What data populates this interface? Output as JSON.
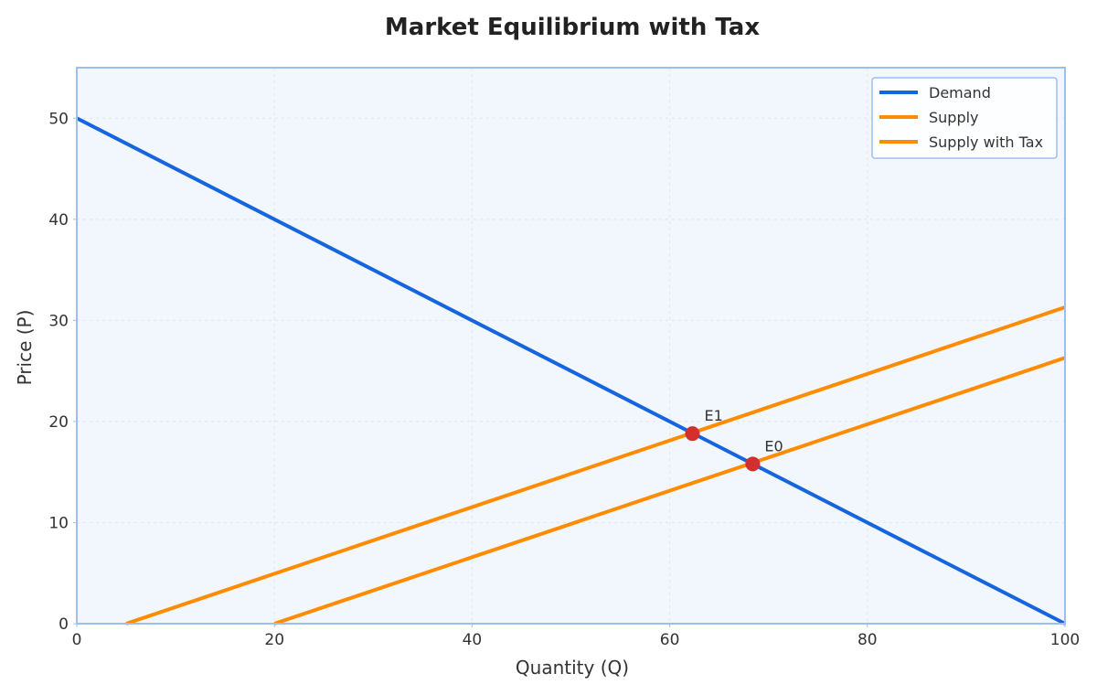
{
  "chart_data": {
    "type": "line",
    "title": "Market Equilibrium with Tax",
    "xlabel": "Quantity (Q)",
    "ylabel": "Price (P)",
    "xlim": [
      0,
      100
    ],
    "ylim": [
      0,
      55
    ],
    "xticks": [
      0,
      20,
      40,
      60,
      80,
      100
    ],
    "yticks": [
      0,
      10,
      20,
      30,
      40,
      50
    ],
    "grid": true,
    "legend_position": "top-right",
    "colors": {
      "plot_background": "#f2f7fd",
      "frame": "#9dbff0",
      "grid": "#dde6f2",
      "demand": "#1565e0",
      "supply": "#ff8c00",
      "points": "#d32f2f"
    },
    "series": [
      {
        "name": "Demand",
        "color": "#1565e0",
        "x": [
          0,
          100
        ],
        "y": [
          50,
          0
        ]
      },
      {
        "name": "Supply",
        "color": "#ff8c00",
        "x": [
          20,
          100
        ],
        "y": [
          0,
          26.3
        ]
      },
      {
        "name": "Supply with Tax",
        "color": "#ff8c00",
        "x": [
          5,
          100
        ],
        "y": [
          0,
          31.3
        ]
      }
    ],
    "points": [
      {
        "label": "E0",
        "x": 68.4,
        "y": 15.8
      },
      {
        "label": "E1",
        "x": 62.3,
        "y": 18.8
      }
    ]
  }
}
